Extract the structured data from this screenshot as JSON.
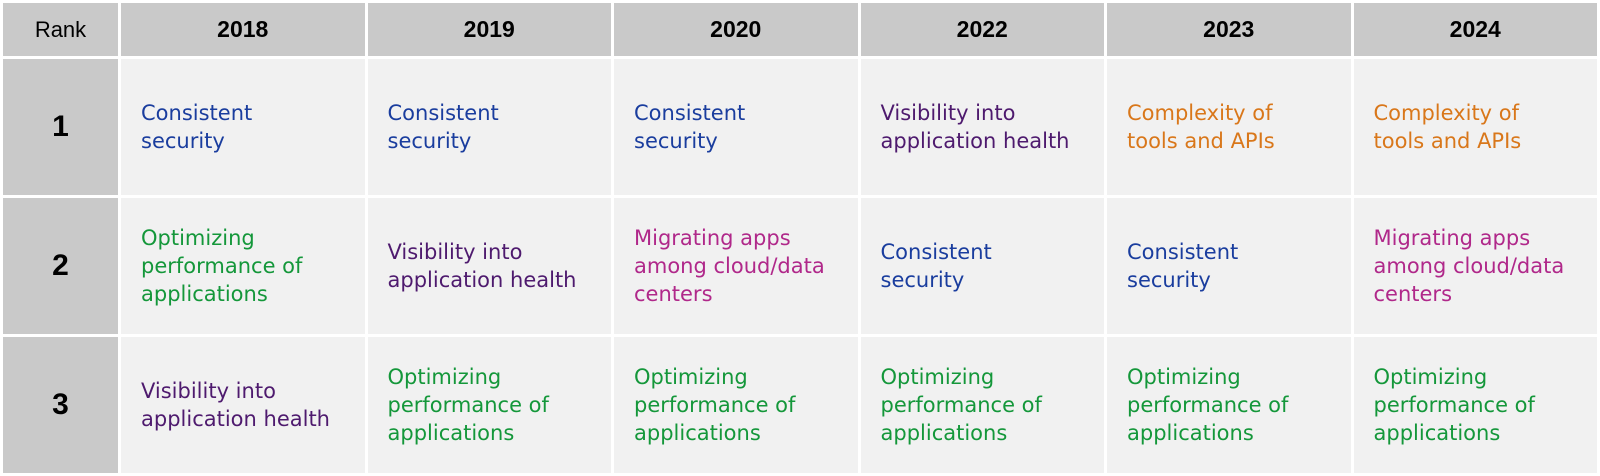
{
  "chart_data": {
    "type": "table",
    "columns": [
      "Rank",
      "2018",
      "2019",
      "2020",
      "2022",
      "2023",
      "2024"
    ],
    "ranks": [
      "1",
      "2",
      "3"
    ],
    "colors": {
      "Consistent security": "#1a3d9e",
      "Optimizing performance of applications": "#14973a",
      "Visibility into application health": "#4e1a6e",
      "Migrating apps among cloud/data centers": "#b0288a",
      "Complexity of tools and APIs": "#d9771a",
      "header_bg": "#c9c9c9",
      "cell_bg": "#f1f1f1"
    },
    "rows": [
      [
        {
          "line1": "Consistent",
          "line2": "security",
          "line3": "",
          "item": "Consistent security"
        },
        {
          "line1": "Consistent",
          "line2": "security",
          "line3": "",
          "item": "Consistent security"
        },
        {
          "line1": "Consistent",
          "line2": "security",
          "line3": "",
          "item": "Consistent security"
        },
        {
          "line1": "Visibility into",
          "line2": "application health",
          "line3": "",
          "item": "Visibility into application health"
        },
        {
          "line1": "Complexity of",
          "line2": "tools and APIs",
          "line3": "",
          "item": "Complexity of tools and APIs"
        },
        {
          "line1": "Complexity of",
          "line2": "tools and APIs",
          "line3": "",
          "item": "Complexity of tools and APIs"
        }
      ],
      [
        {
          "line1": "Optimizing",
          "line2": "performance of",
          "line3": "applications",
          "item": "Optimizing performance of applications"
        },
        {
          "line1": "Visibility into",
          "line2": "application health",
          "line3": "",
          "item": "Visibility into application health"
        },
        {
          "line1": "Migrating apps",
          "line2": "among cloud/data",
          "line3": "centers",
          "item": "Migrating apps among cloud/data centers"
        },
        {
          "line1": "Consistent",
          "line2": "security",
          "line3": "",
          "item": "Consistent security"
        },
        {
          "line1": "Consistent",
          "line2": "security",
          "line3": "",
          "item": "Consistent security"
        },
        {
          "line1": "Migrating apps",
          "line2": "among cloud/data",
          "line3": "centers",
          "item": "Migrating apps among cloud/data centers"
        }
      ],
      [
        {
          "line1": "Visibility into",
          "line2": "application health",
          "line3": "",
          "item": "Visibility into application health"
        },
        {
          "line1": "Optimizing",
          "line2": "performance of",
          "line3": "applications",
          "item": "Optimizing performance of applications"
        },
        {
          "line1": "Optimizing",
          "line2": "performance of",
          "line3": "applications",
          "item": "Optimizing performance of applications"
        },
        {
          "line1": "Optimizing",
          "line2": "performance of",
          "line3": "applications",
          "item": "Optimizing performance of applications"
        },
        {
          "line1": "Optimizing",
          "line2": "performance of",
          "line3": "applications",
          "item": "Optimizing performance of applications"
        },
        {
          "line1": "Optimizing",
          "line2": "performance of",
          "line3": "applications",
          "item": "Optimizing performance of applications"
        }
      ]
    ]
  }
}
